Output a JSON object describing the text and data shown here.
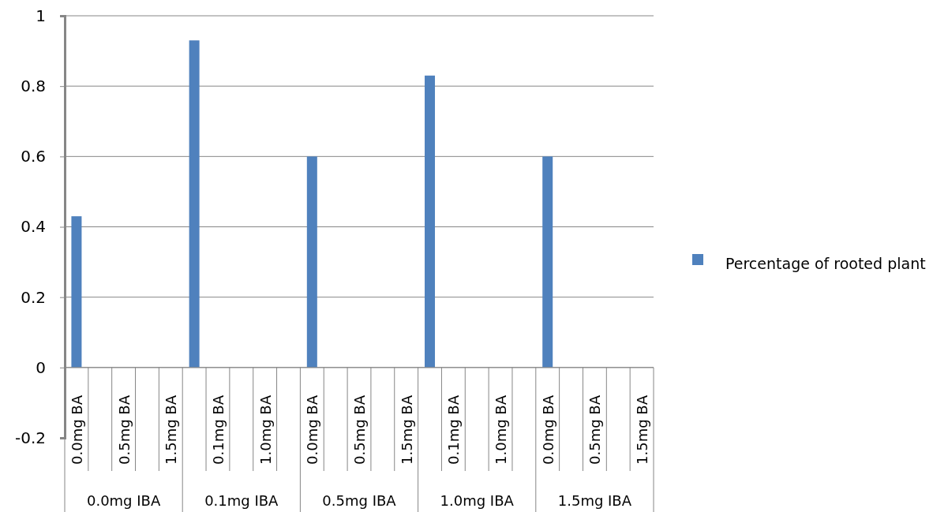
{
  "chart_data": {
    "type": "bar",
    "categories": [
      "0.0mg BA",
      null,
      "0.5mg BA",
      null,
      "1.5mg BA",
      null,
      "0.1mg BA",
      null,
      "1.0mg BA",
      null,
      "0.0mg BA",
      null,
      "0.5mg BA",
      null,
      "1.5mg BA",
      null,
      "0.1mg BA",
      null,
      "1.0mg BA",
      null,
      "0.0mg BA",
      null,
      "0.5mg BA",
      null,
      "1.5mg BA"
    ],
    "series": [
      {
        "name": "Percentage of rooted plant",
        "color": "#4f81bd",
        "values": [
          0.43,
          null,
          null,
          null,
          null,
          0.93,
          null,
          null,
          null,
          null,
          0.6,
          null,
          null,
          null,
          null,
          0.83,
          null,
          null,
          null,
          null,
          0.6,
          null,
          null,
          null,
          null
        ]
      }
    ],
    "annotations": [
      "0.0mg IBA",
      "0.1mg IBA",
      "0.5mg IBA",
      "1.0mg IBA",
      "1.5mg IBA"
    ],
    "ylim": [
      -0.2,
      1
    ],
    "yticks": [
      -0.2,
      0,
      0.2,
      0.4,
      0.6,
      0.8,
      1
    ],
    "grid": "y",
    "legend": "right"
  }
}
